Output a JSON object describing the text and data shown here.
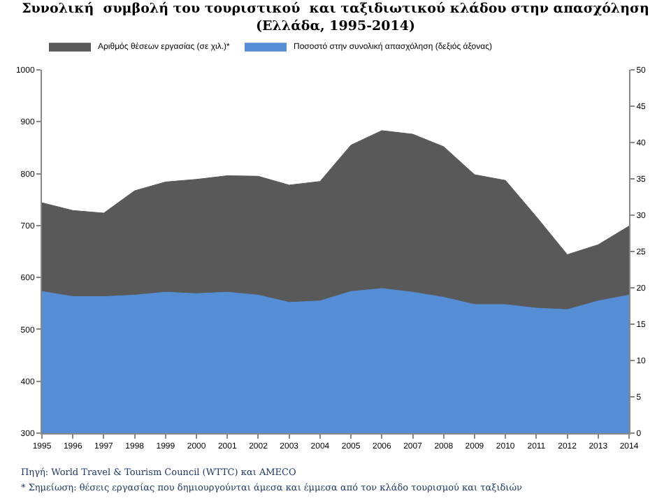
{
  "chart_data": {
    "type": "area",
    "title": "Συνολική  συμβολή του τουριστικού  και ταξιδιωτικού κλάδου στην απασχόληση\n(Ελλάδα, 1995-2014)",
    "x": [
      1995,
      1996,
      1997,
      1998,
      1999,
      2000,
      2001,
      2002,
      2003,
      2004,
      2005,
      2006,
      2007,
      2008,
      2009,
      2010,
      2011,
      2012,
      2013,
      2014
    ],
    "series": [
      {
        "name": "Αριθμός θέσεων εργασίας (σε χιλ.)*",
        "color": "#595959",
        "values": [
          744,
          729,
          724,
          767,
          784,
          789,
          796,
          795,
          778,
          785,
          855,
          883,
          876,
          852,
          798,
          787,
          717,
          644,
          663,
          699
        ]
      },
      {
        "name": "Ποσοστό στην συνολική απασχόληση (δεξιός άξονας)",
        "color": "#558ed5",
        "axis": "y2",
        "values": [
          19.5,
          18.8,
          18.8,
          19.0,
          19.4,
          19.2,
          19.4,
          19.0,
          18.0,
          18.2,
          19.5,
          19.9,
          19.4,
          18.7,
          17.7,
          17.7,
          17.2,
          17.0,
          18.2,
          19.0
        ]
      }
    ],
    "xlim": [
      1995,
      2014
    ],
    "xticks": [
      1995,
      1996,
      1997,
      1998,
      1999,
      2000,
      2001,
      2002,
      2003,
      2004,
      2005,
      2006,
      2007,
      2008,
      2009,
      2010,
      2011,
      2012,
      2013,
      2014
    ],
    "ylim": [
      300,
      1000
    ],
    "yticks": [
      300,
      400,
      500,
      600,
      700,
      800,
      900,
      1000
    ],
    "y2lim": [
      0,
      50
    ],
    "y2ticks": [
      0,
      5,
      10,
      15,
      20,
      25,
      30,
      35,
      40,
      45,
      50
    ],
    "grid": false,
    "legend": "top",
    "annotations": [
      "Πηγή: World Travel & Tourism Council (WTTC) και AMECO",
      "* Σημείωση: θέσεις εργασίας που δημιουργούνται άμεσα και έμμεσα από τον κλάδο τουρισμού και ταξιδιών"
    ]
  }
}
